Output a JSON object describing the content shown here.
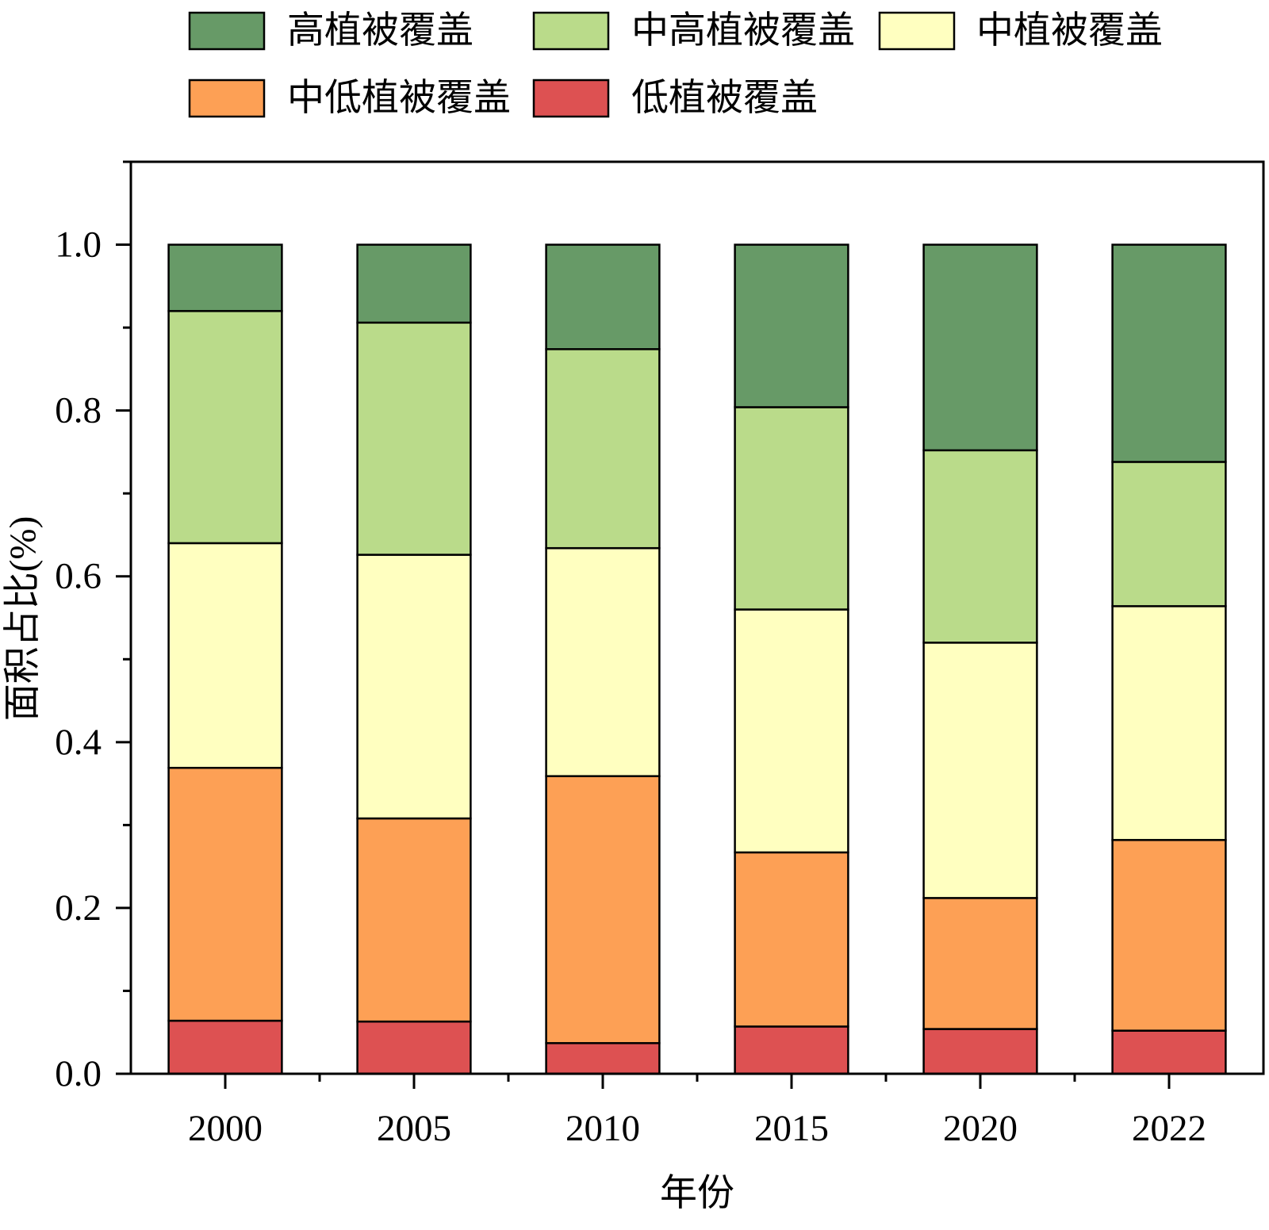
{
  "chart_data": {
    "type": "bar",
    "stacked": true,
    "title": "",
    "xlabel": "年份",
    "ylabel": "面积占比(%)",
    "categories": [
      "2000",
      "2005",
      "2010",
      "2015",
      "2020",
      "2022"
    ],
    "ylim": [
      0,
      1.1
    ],
    "ytick_labels": [
      "0.0",
      "0.2",
      "0.4",
      "0.6",
      "0.8",
      "1.0"
    ],
    "yminor_step": 0.1,
    "grid": false,
    "legend_position": "top",
    "series": [
      {
        "name": "低植被覆盖",
        "color": "#dd5152",
        "values": [
          0.064,
          0.063,
          0.037,
          0.057,
          0.054,
          0.052
        ]
      },
      {
        "name": "中低植被覆盖",
        "color": "#fda055",
        "values": [
          0.305,
          0.245,
          0.322,
          0.21,
          0.158,
          0.23
        ]
      },
      {
        "name": "中植被覆盖",
        "color": "#ffffc0",
        "values": [
          0.271,
          0.318,
          0.275,
          0.293,
          0.308,
          0.282
        ]
      },
      {
        "name": "中高植被覆盖",
        "color": "#badb8a",
        "values": [
          0.28,
          0.28,
          0.24,
          0.244,
          0.232,
          0.174
        ]
      },
      {
        "name": "高植被覆盖",
        "color": "#679a67",
        "values": [
          0.08,
          0.094,
          0.126,
          0.196,
          0.248,
          0.262
        ]
      }
    ]
  }
}
